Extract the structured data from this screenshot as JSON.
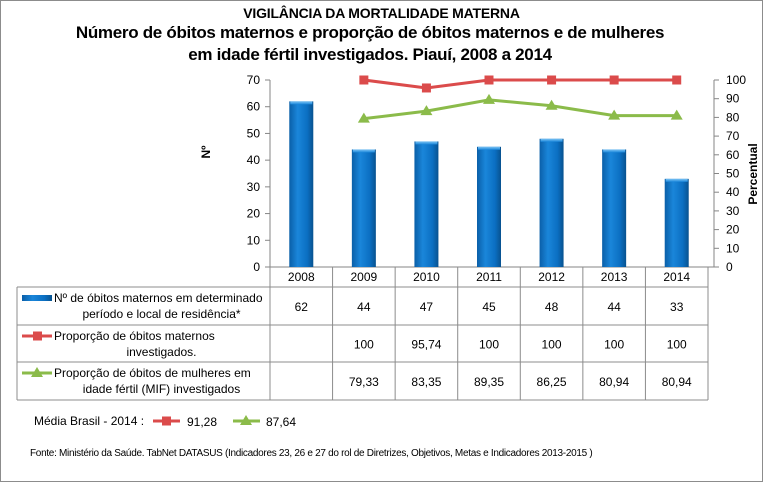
{
  "header": {
    "supertitle": "VIGILÂNCIA DA MORTALIDADE MATERNA",
    "title_line1": "Número de óbitos maternos e proporção de óbitos maternos e de mulheres",
    "title_line2": "em idade fértil investigados. Piauí, 2008 a 2014"
  },
  "chart_data": {
    "type": "bar",
    "title": "Número de óbitos maternos e proporção de óbitos maternos e de mulheres em idade fértil investigados. Piauí, 2008 a 2014",
    "categories": [
      "2008",
      "2009",
      "2010",
      "2011",
      "2012",
      "2013",
      "2014"
    ],
    "ylabel": "Nº",
    "y2label": "Percentual",
    "ylim": [
      0,
      70
    ],
    "y2lim": [
      0,
      100
    ],
    "yticks": [
      0,
      10,
      20,
      30,
      40,
      50,
      60,
      70
    ],
    "y2ticks": [
      0,
      10,
      20,
      30,
      40,
      50,
      60,
      70,
      80,
      90,
      100
    ],
    "grid": false,
    "legend_placement": "data-table-below",
    "series": [
      {
        "name": "Nº  de óbitos maternos em determinado período e local de residência*",
        "label_line1": "Nº  de óbitos maternos em determinado",
        "label_line2": "período e local de residência*",
        "type": "bar",
        "axis": "left",
        "color": "#0B6FC2",
        "values": [
          62,
          44,
          47,
          45,
          48,
          44,
          33
        ],
        "display": [
          "62",
          "44",
          "47",
          "45",
          "48",
          "44",
          "33"
        ]
      },
      {
        "name": "Proporção de óbitos maternos investigados.",
        "label_line1": "Proporção de óbitos maternos",
        "label_line2": "investigados.",
        "type": "line",
        "marker": "square",
        "axis": "right",
        "color": "#DB4B4B",
        "values": [
          null,
          100,
          95.74,
          100,
          100,
          100,
          100
        ],
        "display": [
          "",
          "100",
          "95,74",
          "100",
          "100",
          "100",
          "100"
        ]
      },
      {
        "name": "Proporção de óbitos de mulheres em idade fértil (MIF) investigados",
        "label_line1": "Proporção de óbitos de mulheres em",
        "label_line2": "idade fértil (MIF) investigados",
        "type": "line",
        "marker": "triangle",
        "axis": "right",
        "color": "#8BBB4A",
        "values": [
          null,
          79.33,
          83.35,
          89.35,
          86.25,
          80.94,
          80.94
        ],
        "display": [
          "",
          "79,33",
          "83,35",
          "89,35",
          "86,25",
          "80,94",
          "80,94"
        ]
      }
    ]
  },
  "brazil_average": {
    "label": "Média Brasil - 2014 :",
    "maternal_value": "91,28",
    "mif_value": "87,64"
  },
  "source": "Fonte: Ministério da Saúde. TabNet DATASUS (Indicadores 23, 26 e 27  do rol de Diretrizes, Objetivos, Metas e Indicadores 2013-2015 )"
}
